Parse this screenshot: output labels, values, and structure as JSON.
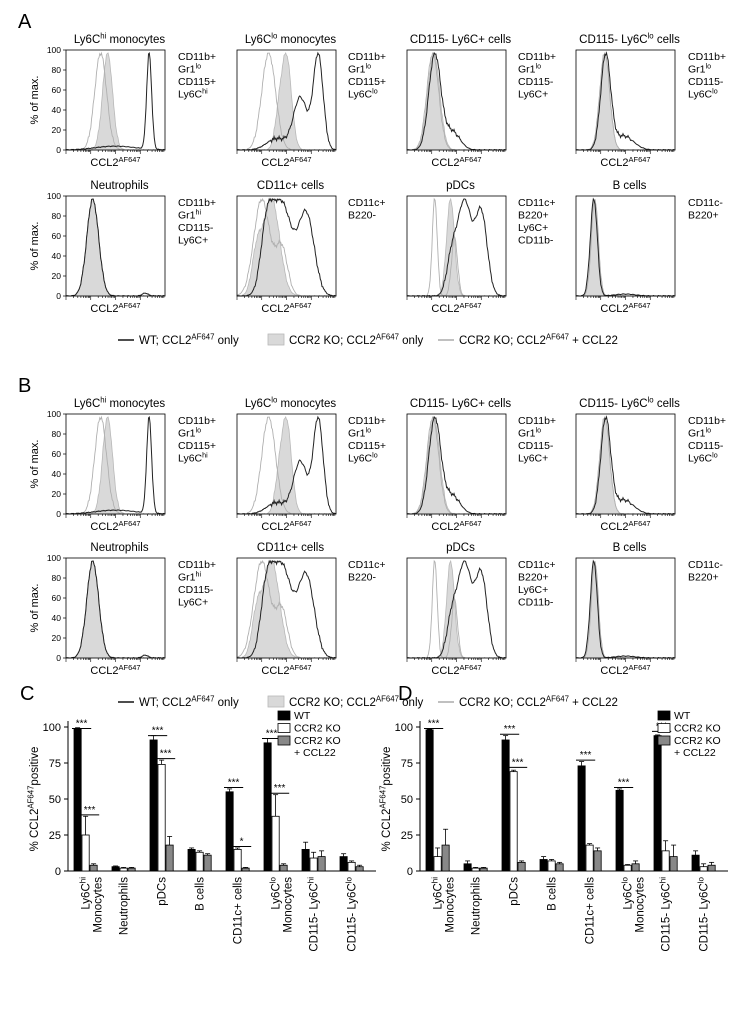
{
  "panel_letters": [
    "A",
    "B",
    "C",
    "D"
  ],
  "histograms": {
    "A": {
      "rows": [
        [
          {
            "title": "Ly6C",
            "title_sup": "hi",
            "title_rest": " monocytes",
            "markers": [
              [
                "CD11b+",
                ""
              ],
              [
                "Gr1",
                "lo"
              ],
              [
                "CD115+",
                ""
              ],
              [
                "Ly6C",
                "hi"
              ]
            ],
            "xlabel": "CCL2",
            "xsup": "AF647"
          },
          {
            "title": "Ly6C",
            "title_sup": "lo",
            "title_rest": " monocytes",
            "markers": [
              [
                "CD11b+",
                ""
              ],
              [
                "Gr1",
                "lo"
              ],
              [
                "CD115+",
                ""
              ],
              [
                "Ly6C",
                "lo"
              ]
            ],
            "xlabel": "CCL2",
            "xsup": "AF647"
          },
          {
            "title": "CD115- Ly6C+ cells",
            "title_sup": "",
            "title_rest": "",
            "markers": [
              [
                "CD11b+",
                ""
              ],
              [
                "Gr1",
                "lo"
              ],
              [
                "CD115-",
                ""
              ],
              [
                "Ly6C+",
                ""
              ]
            ],
            "xlabel": "CCL2",
            "xsup": "AF647"
          },
          {
            "title": "CD115- Ly6C",
            "title_sup": "lo",
            "title_rest": " cells",
            "markers": [
              [
                "CD11b+",
                ""
              ],
              [
                "Gr1",
                "lo"
              ],
              [
                "CD115-",
                ""
              ],
              [
                "Ly6C",
                "lo"
              ]
            ],
            "xlabel": "CCL2",
            "xsup": "AF647"
          }
        ],
        [
          {
            "title": "Neutrophils",
            "title_sup": "",
            "title_rest": "",
            "markers": [
              [
                "CD11b+",
                ""
              ],
              [
                "Gr1",
                "hi"
              ],
              [
                "CD115-",
                ""
              ],
              [
                "Ly6C+",
                ""
              ]
            ],
            "xlabel": "CCL2",
            "xsup": "AF647"
          },
          {
            "title": "CD11c+ cells",
            "title_sup": "",
            "title_rest": "",
            "markers": [
              [
                "CD11c+",
                ""
              ],
              [
                "B220-",
                ""
              ]
            ],
            "xlabel": "CCL2",
            "xsup": "AF647"
          },
          {
            "title": "pDCs",
            "title_sup": "",
            "title_rest": "",
            "markers": [
              [
                "CD11c+",
                ""
              ],
              [
                "B220+",
                ""
              ],
              [
                "Ly6C+",
                ""
              ],
              [
                "CD11b-",
                ""
              ]
            ],
            "xlabel": "CCL2",
            "xsup": "AF647"
          },
          {
            "title": "B cells",
            "title_sup": "",
            "title_rest": "",
            "markers": [
              [
                "CD11c-",
                ""
              ],
              [
                "B220+",
                ""
              ]
            ],
            "xlabel": "CCL2",
            "xsup": "AF647"
          }
        ]
      ]
    },
    "B": {
      "rows": [
        [
          {
            "title": "Ly6C",
            "title_sup": "hi",
            "title_rest": " monocytes",
            "markers": [
              [
                "CD11b+",
                ""
              ],
              [
                "Gr1",
                "lo"
              ],
              [
                "CD115+",
                ""
              ],
              [
                "Ly6C",
                "hi"
              ]
            ],
            "xlabel": "CCL2",
            "xsup": "AF647"
          },
          {
            "title": "Ly6C",
            "title_sup": "lo",
            "title_rest": " monocytes",
            "markers": [
              [
                "CD11b+",
                ""
              ],
              [
                "Gr1",
                "lo"
              ],
              [
                "CD115+",
                ""
              ],
              [
                "Ly6C",
                "lo"
              ]
            ],
            "xlabel": "CCL2",
            "xsup": "AF647"
          },
          {
            "title": "CD115- Ly6C+ cells",
            "title_sup": "",
            "title_rest": "",
            "markers": [
              [
                "CD11b+",
                ""
              ],
              [
                "Gr1",
                "lo"
              ],
              [
                "CD115-",
                ""
              ],
              [
                "Ly6C+",
                ""
              ]
            ],
            "xlabel": "CCL2",
            "xsup": "AF647"
          },
          {
            "title": "CD115- Ly6C",
            "title_sup": "lo",
            "title_rest": " cells",
            "markers": [
              [
                "CD11b+",
                ""
              ],
              [
                "Gr1",
                "lo"
              ],
              [
                "CD115-",
                ""
              ],
              [
                "Ly6C",
                "lo"
              ]
            ],
            "xlabel": "CCL2",
            "xsup": "AF647"
          }
        ],
        [
          {
            "title": "Neutrophils",
            "title_sup": "",
            "title_rest": "",
            "markers": [
              [
                "CD11b+",
                ""
              ],
              [
                "Gr1",
                "hi"
              ],
              [
                "CD115-",
                ""
              ],
              [
                "Ly6C+",
                ""
              ]
            ],
            "xlabel": "CCL2",
            "xsup": "AF647"
          },
          {
            "title": "CD11c+ cells",
            "title_sup": "",
            "title_rest": "",
            "markers": [
              [
                "CD11c+",
                ""
              ],
              [
                "B220-",
                ""
              ]
            ],
            "xlabel": "CCL2",
            "xsup": "AF647"
          },
          {
            "title": "pDCs",
            "title_sup": "",
            "title_rest": "",
            "markers": [
              [
                "CD11c+",
                ""
              ],
              [
                "B220+",
                ""
              ],
              [
                "Ly6C+",
                ""
              ],
              [
                "CD11b-",
                ""
              ]
            ],
            "xlabel": "CCL2",
            "xsup": "AF647"
          },
          {
            "title": "B cells",
            "title_sup": "",
            "title_rest": "",
            "markers": [
              [
                "CD11c-",
                ""
              ],
              [
                "B220+",
                ""
              ]
            ],
            "xlabel": "CCL2",
            "xsup": "AF647"
          }
        ]
      ]
    },
    "ylabel": "% of max.",
    "yticks": [
      "0",
      "20",
      "40",
      "60",
      "80",
      "100"
    ],
    "legend": [
      {
        "pre": "WT; CCL2",
        "sup": "AF647",
        "post": " only",
        "style": "wt"
      },
      {
        "pre": "CCR2 KO; CCL2",
        "sup": "AF647",
        "post": " only",
        "style": "ko"
      },
      {
        "pre": "CCR2 KO; CCL2",
        "sup": "AF647",
        "post": " + CCL22",
        "style": "ccl22"
      }
    ]
  },
  "chart_data": [
    {
      "type": "bar",
      "panel": "C",
      "ylabel": "% CCL2",
      "ylabel_sup": "AF647",
      "ylabel_post": "positive",
      "ylim": [
        0,
        100
      ],
      "yticks": [
        "0",
        "25",
        "50",
        "75",
        "100"
      ],
      "categories": [
        {
          "l1": "Ly6C",
          "sup": "hi",
          "l2": "Monocytes"
        },
        {
          "l1": "Neutrophils",
          "sup": "",
          "l2": ""
        },
        {
          "l1": "pDCs",
          "sup": "",
          "l2": ""
        },
        {
          "l1": "B cells",
          "sup": "",
          "l2": ""
        },
        {
          "l1": "CD11c+ cells",
          "sup": "",
          "l2": ""
        },
        {
          "l1": "Ly6C",
          "sup": "lo",
          "l2": "Monocytes"
        },
        {
          "l1": "CD115- Ly6C",
          "sup": "hi",
          "l2": ""
        },
        {
          "l1": "CD115- Ly6C",
          "sup": "lo",
          "l2": ""
        }
      ],
      "series": [
        {
          "name": "WT",
          "values": [
            99,
            3,
            91,
            15,
            55,
            89,
            15,
            10
          ],
          "errors": [
            0.5,
            0.5,
            3,
            1,
            2,
            3,
            5,
            2
          ]
        },
        {
          "name": "CCR2 KO",
          "values": [
            25,
            2,
            74,
            13,
            15,
            38,
            9,
            6
          ],
          "errors": [
            13,
            0.5,
            3,
            1,
            1,
            15,
            4,
            1
          ]
        },
        {
          "name": "CCR2 KO\n+ CCL22",
          "values": [
            4,
            2,
            18,
            11,
            2,
            4,
            10,
            3
          ],
          "errors": [
            1,
            0.5,
            6,
            1,
            0.5,
            1,
            4,
            1
          ]
        }
      ],
      "significance": [
        {
          "g": 0,
          "a": 0,
          "b": 1,
          "y": 99,
          "label": "***"
        },
        {
          "g": 0,
          "a": 1,
          "b": 2,
          "y": 39,
          "label": "***"
        },
        {
          "g": 2,
          "a": 0,
          "b": 1,
          "y": 94,
          "label": "***"
        },
        {
          "g": 2,
          "a": 1,
          "b": 2,
          "y": 78,
          "label": "***"
        },
        {
          "g": 4,
          "a": 0,
          "b": 1,
          "y": 58,
          "label": "***"
        },
        {
          "g": 4,
          "a": 1,
          "b": 2,
          "y": 17,
          "label": "*"
        },
        {
          "g": 5,
          "a": 0,
          "b": 1,
          "y": 92,
          "label": "***"
        },
        {
          "g": 5,
          "a": 1,
          "b": 2,
          "y": 54,
          "label": "***"
        }
      ]
    },
    {
      "type": "bar",
      "panel": "D",
      "ylabel": "% CCL2",
      "ylabel_sup": "AF647",
      "ylabel_post": "positive",
      "ylim": [
        0,
        100
      ],
      "yticks": [
        "0",
        "25",
        "50",
        "75",
        "100"
      ],
      "categories": [
        {
          "l1": "Ly6C",
          "sup": "hi",
          "l2": "Monocytes"
        },
        {
          "l1": "Neutrophils",
          "sup": "",
          "l2": ""
        },
        {
          "l1": "pDCs",
          "sup": "",
          "l2": ""
        },
        {
          "l1": "B cells",
          "sup": "",
          "l2": ""
        },
        {
          "l1": "CD11c+ cells",
          "sup": "",
          "l2": ""
        },
        {
          "l1": "Ly6C",
          "sup": "lo",
          "l2": "Monocytes"
        },
        {
          "l1": "CD115- Ly6C",
          "sup": "hi",
          "l2": ""
        },
        {
          "l1": "CD115- Ly6C",
          "sup": "lo",
          "l2": ""
        }
      ],
      "series": [
        {
          "name": "WT",
          "values": [
            98,
            5,
            91,
            8,
            73,
            56,
            94,
            11
          ],
          "errors": [
            0.5,
            2,
            3,
            2,
            3,
            1,
            0.5,
            3
          ]
        },
        {
          "name": "CCR2 KO",
          "values": [
            10,
            2,
            69,
            7,
            18,
            4,
            14,
            3
          ],
          "errors": [
            6,
            0.5,
            1,
            1,
            1,
            0.5,
            7,
            2
          ]
        },
        {
          "name": "CCR2 KO\n+ CCL22",
          "values": [
            18,
            2,
            6,
            5,
            14,
            5,
            10,
            4
          ],
          "errors": [
            11,
            0.5,
            1,
            1,
            2,
            2,
            8,
            2
          ]
        }
      ],
      "significance": [
        {
          "g": 0,
          "a": 0,
          "b": 1,
          "y": 99,
          "label": "***"
        },
        {
          "g": 2,
          "a": 0,
          "b": 1,
          "y": 95,
          "label": "***"
        },
        {
          "g": 2,
          "a": 1,
          "b": 2,
          "y": 72,
          "label": "***"
        },
        {
          "g": 4,
          "a": 0,
          "b": 1,
          "y": 77,
          "label": "***"
        },
        {
          "g": 5,
          "a": 0,
          "b": 1,
          "y": 58,
          "label": "***"
        },
        {
          "g": 6,
          "a": 0,
          "b": 1,
          "y": 97,
          "label": "***"
        }
      ]
    }
  ],
  "colors": {
    "wt": "#222222",
    "ko_fill": "#d9d9d9",
    "ko_stroke": "#b8b8b8",
    "ccl22": "#b0b0b0",
    "bar_wt": "#000000",
    "bar_ko": "#ffffff",
    "bar_ccl22": "#888888"
  }
}
